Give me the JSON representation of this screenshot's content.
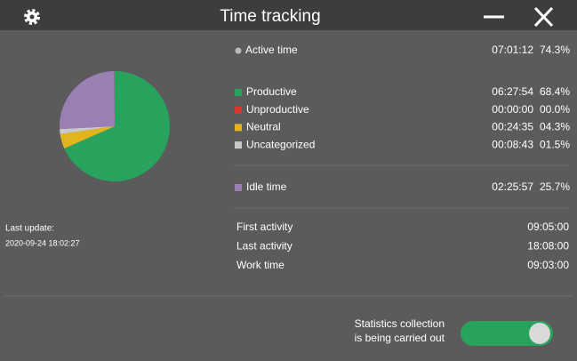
{
  "header": {
    "title": "Time tracking"
  },
  "active_time": {
    "label": "Active time",
    "time": "07:01:12",
    "percent_label": "74.3%"
  },
  "breakdown": [
    {
      "label": "Productive",
      "time": "06:27:54",
      "percent": 68.4,
      "percent_label": "68.4%",
      "color": "#27a35e"
    },
    {
      "label": "Unproductive",
      "time": "00:00:00",
      "percent": 0.0,
      "percent_label": "00.0%",
      "color": "#d63a2f"
    },
    {
      "label": "Neutral",
      "time": "00:24:35",
      "percent": 4.3,
      "percent_label": "04.3%",
      "color": "#e2b41e"
    },
    {
      "label": "Uncategorized",
      "time": "00:08:43",
      "percent": 1.5,
      "percent_label": "01.5%",
      "color": "#c9c9c9"
    }
  ],
  "idle_time": {
    "label": "Idle time",
    "time": "02:25:57",
    "percent": 25.7,
    "percent_label": "25.7%",
    "color": "#9a7fb5"
  },
  "last_update": {
    "label": "Last update:",
    "value": "2020-09-24 18:02:27"
  },
  "activity": [
    {
      "label": "First activity",
      "value": "09:05:00"
    },
    {
      "label": "Last activity",
      "value": "18:08:00"
    },
    {
      "label": "Work time",
      "value": "09:03:00"
    }
  ],
  "statistics": {
    "lines": [
      "Statistics collection",
      "is being carried out"
    ]
  }
}
